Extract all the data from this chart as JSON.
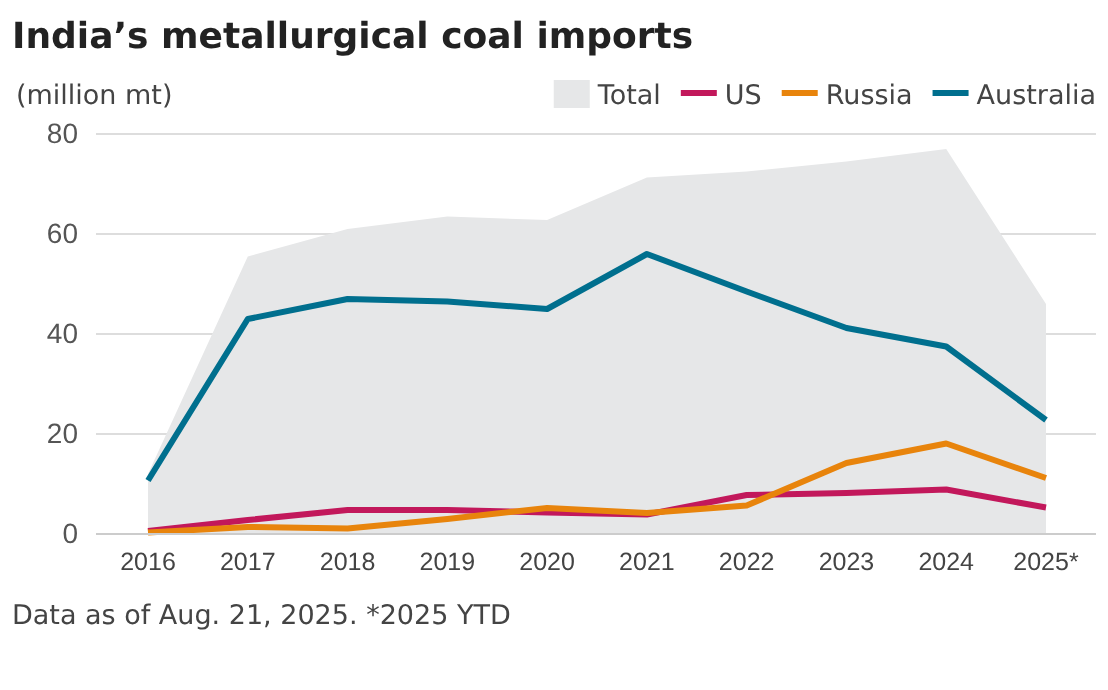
{
  "chart_data": {
    "type": "line",
    "title": "India’s metallurgical coal imports",
    "ylabel": "(million mt)",
    "categories": [
      "2016",
      "2017",
      "2018",
      "2019",
      "2020",
      "2021",
      "2022",
      "2023",
      "2024",
      "2025*"
    ],
    "series": [
      {
        "name": "Total",
        "type": "area",
        "color": "#e6e7e8",
        "values": [
          12,
          55.5,
          61,
          63.5,
          62.8,
          71.3,
          72.5,
          74.5,
          77,
          46
        ]
      },
      {
        "name": "US",
        "color": "#c2185b",
        "values": [
          0.6,
          2.8,
          4.8,
          4.8,
          4.3,
          3.9,
          7.8,
          8.2,
          8.9,
          5.3
        ]
      },
      {
        "name": "Russia",
        "color": "#e8840c",
        "values": [
          0.3,
          1.4,
          1.1,
          3,
          5.2,
          4.2,
          5.7,
          14.2,
          18.1,
          11.2
        ]
      },
      {
        "name": "Australia",
        "color": "#006f8e",
        "values": [
          10.7,
          43,
          47,
          46.5,
          45,
          56,
          48.5,
          41.2,
          37.5,
          22.8
        ]
      }
    ],
    "ylim": [
      0,
      80
    ],
    "yticks": [
      0,
      20,
      40,
      60,
      80
    ],
    "grid": "y",
    "legend": "top",
    "line_style": "solid",
    "annotations": [
      "Data as of Aug. 21, 2025. *2025 YTD"
    ]
  }
}
